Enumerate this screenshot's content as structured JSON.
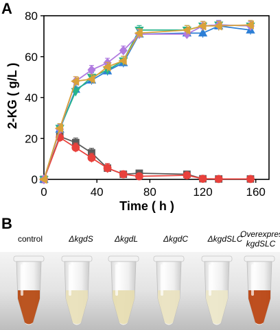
{
  "figure": {
    "panel_a_letter": "A",
    "panel_b_letter": "B"
  },
  "chart_data": {
    "type": "line",
    "title": "",
    "xlabel": "Time ( h )",
    "ylabel": "2-KG ( g/L )",
    "xlim": [
      0,
      170
    ],
    "ylim": [
      0,
      80
    ],
    "xticks": [
      0,
      40,
      80,
      120,
      160
    ],
    "yticks": [
      0,
      20,
      40,
      60,
      80
    ],
    "grid": false,
    "legend": "none",
    "series": [
      {
        "color": "#5a5a5a",
        "marker": "square",
        "x": [
          0,
          12,
          24,
          36,
          48,
          60,
          72,
          108,
          120,
          132,
          156
        ],
        "y": [
          0,
          21,
          18,
          13,
          5.5,
          2.5,
          3,
          2.5,
          0.3,
          0.2,
          0.2
        ]
      },
      {
        "color": "#e8413c",
        "marker": "circle",
        "x": [
          0,
          12,
          24,
          36,
          48,
          60,
          72,
          108,
          120,
          132,
          156
        ],
        "y": [
          0,
          20.5,
          15.5,
          10.5,
          5.5,
          2.5,
          1.5,
          2,
          0.3,
          0.2,
          0.2
        ]
      },
      {
        "color": "#2d7fd6",
        "marker": "triangle-up",
        "x": [
          0,
          12,
          24,
          36,
          48,
          60,
          72,
          108,
          120,
          132,
          156
        ],
        "y": [
          0,
          24.5,
          44,
          48.5,
          53,
          57,
          71,
          71.5,
          71.5,
          75,
          73
        ]
      },
      {
        "color": "#27b38c",
        "marker": "triangle-down",
        "x": [
          0,
          12,
          24,
          36,
          48,
          60,
          72,
          108,
          120,
          132,
          156
        ],
        "y": [
          0,
          25,
          43,
          50,
          53.5,
          58,
          73,
          73,
          75,
          75.5,
          75
        ]
      },
      {
        "color": "#b07be0",
        "marker": "diamond",
        "x": [
          0,
          12,
          24,
          36,
          48,
          60,
          72,
          108,
          120,
          132,
          156
        ],
        "y": [
          0,
          24.5,
          48,
          53.5,
          57,
          63,
          71,
          71,
          75,
          75.5,
          75
        ]
      },
      {
        "color": "#d9a23a",
        "marker": "triangle-left",
        "x": [
          0,
          12,
          24,
          36,
          48,
          60,
          72,
          108,
          120,
          132,
          156
        ],
        "y": [
          0,
          25,
          48,
          49,
          55,
          58,
          71.5,
          73,
          75,
          75,
          75.5
        ]
      }
    ]
  },
  "panel_b": {
    "labels": [
      {
        "text": "control",
        "italic": false
      },
      {
        "text": "ΔkgdS",
        "italic": true
      },
      {
        "text": "ΔkgdL",
        "italic": true
      },
      {
        "text": "ΔkgdC",
        "italic": true
      },
      {
        "text": "ΔkgdSLC",
        "italic": true
      },
      {
        "text": "Overexpress kgdSLC",
        "italic": true
      }
    ],
    "tubes": [
      {
        "liquid": "#b5460e"
      },
      {
        "liquid": "#e8e0b8"
      },
      {
        "liquid": "#e6dcb0"
      },
      {
        "liquid": "#e9e2bf"
      },
      {
        "liquid": "#ebe6c8"
      },
      {
        "liquid": "#b8400c"
      }
    ]
  }
}
